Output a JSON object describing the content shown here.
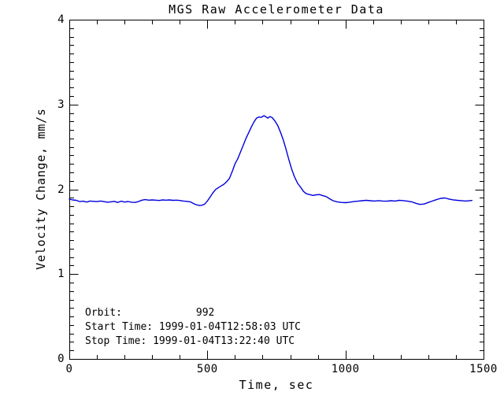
{
  "chart_data": {
    "type": "line",
    "title": "MGS Raw Accelerometer Data",
    "xlabel": "Time, sec",
    "ylabel": "Velocity Change, mm/s",
    "xlim": [
      0,
      1500
    ],
    "ylim": [
      0,
      4
    ],
    "xticks": [
      0,
      500,
      1000,
      1500
    ],
    "xtick_labels": [
      "0",
      "500",
      "1000",
      "1500"
    ],
    "yticks": [
      0,
      1,
      2,
      3,
      4
    ],
    "ytick_labels": [
      "0",
      "1",
      "2",
      "3",
      "4"
    ],
    "x_minor_interval": 100,
    "y_minor_interval": 0.1,
    "grid": false,
    "legend_position": "none",
    "axis_color": "#000000",
    "line_color": "#0000dd",
    "series": [
      {
        "name": "velocity_change_mm_per_s",
        "points": [
          [
            0,
            1.885
          ],
          [
            12,
            1.875
          ],
          [
            25,
            1.87
          ],
          [
            38,
            1.855
          ],
          [
            50,
            1.86
          ],
          [
            63,
            1.85
          ],
          [
            75,
            1.862
          ],
          [
            88,
            1.858
          ],
          [
            100,
            1.855
          ],
          [
            113,
            1.862
          ],
          [
            125,
            1.855
          ],
          [
            138,
            1.848
          ],
          [
            150,
            1.852
          ],
          [
            163,
            1.858
          ],
          [
            175,
            1.845
          ],
          [
            188,
            1.86
          ],
          [
            200,
            1.85
          ],
          [
            213,
            1.856
          ],
          [
            225,
            1.848
          ],
          [
            238,
            1.845
          ],
          [
            250,
            1.855
          ],
          [
            263,
            1.872
          ],
          [
            275,
            1.878
          ],
          [
            288,
            1.872
          ],
          [
            300,
            1.875
          ],
          [
            313,
            1.872
          ],
          [
            325,
            1.868
          ],
          [
            338,
            1.875
          ],
          [
            350,
            1.872
          ],
          [
            363,
            1.875
          ],
          [
            375,
            1.87
          ],
          [
            388,
            1.872
          ],
          [
            400,
            1.868
          ],
          [
            413,
            1.862
          ],
          [
            425,
            1.858
          ],
          [
            438,
            1.852
          ],
          [
            450,
            1.832
          ],
          [
            460,
            1.818
          ],
          [
            470,
            1.81
          ],
          [
            480,
            1.812
          ],
          [
            490,
            1.825
          ],
          [
            500,
            1.862
          ],
          [
            510,
            1.908
          ],
          [
            520,
            1.958
          ],
          [
            530,
            1.998
          ],
          [
            540,
            2.02
          ],
          [
            550,
            2.04
          ],
          [
            560,
            2.06
          ],
          [
            570,
            2.09
          ],
          [
            580,
            2.13
          ],
          [
            590,
            2.21
          ],
          [
            600,
            2.3
          ],
          [
            610,
            2.36
          ],
          [
            620,
            2.44
          ],
          [
            630,
            2.52
          ],
          [
            640,
            2.6
          ],
          [
            650,
            2.67
          ],
          [
            660,
            2.74
          ],
          [
            670,
            2.8
          ],
          [
            678,
            2.84
          ],
          [
            686,
            2.852
          ],
          [
            695,
            2.848
          ],
          [
            705,
            2.868
          ],
          [
            712,
            2.855
          ],
          [
            719,
            2.84
          ],
          [
            727,
            2.858
          ],
          [
            735,
            2.845
          ],
          [
            745,
            2.805
          ],
          [
            755,
            2.75
          ],
          [
            765,
            2.67
          ],
          [
            775,
            2.58
          ],
          [
            785,
            2.47
          ],
          [
            795,
            2.35
          ],
          [
            805,
            2.24
          ],
          [
            815,
            2.15
          ],
          [
            827,
            2.07
          ],
          [
            838,
            2.022
          ],
          [
            848,
            1.975
          ],
          [
            858,
            1.948
          ],
          [
            870,
            1.938
          ],
          [
            882,
            1.928
          ],
          [
            894,
            1.935
          ],
          [
            906,
            1.938
          ],
          [
            918,
            1.925
          ],
          [
            930,
            1.915
          ],
          [
            942,
            1.89
          ],
          [
            955,
            1.865
          ],
          [
            970,
            1.852
          ],
          [
            985,
            1.845
          ],
          [
            1000,
            1.842
          ],
          [
            1015,
            1.848
          ],
          [
            1030,
            1.855
          ],
          [
            1045,
            1.86
          ],
          [
            1060,
            1.865
          ],
          [
            1075,
            1.87
          ],
          [
            1090,
            1.865
          ],
          [
            1105,
            1.862
          ],
          [
            1120,
            1.866
          ],
          [
            1135,
            1.862
          ],
          [
            1150,
            1.86
          ],
          [
            1165,
            1.865
          ],
          [
            1180,
            1.862
          ],
          [
            1195,
            1.87
          ],
          [
            1210,
            1.866
          ],
          [
            1225,
            1.86
          ],
          [
            1240,
            1.852
          ],
          [
            1255,
            1.835
          ],
          [
            1270,
            1.822
          ],
          [
            1285,
            1.826
          ],
          [
            1300,
            1.845
          ],
          [
            1315,
            1.862
          ],
          [
            1330,
            1.878
          ],
          [
            1345,
            1.893
          ],
          [
            1360,
            1.898
          ],
          [
            1375,
            1.885
          ],
          [
            1390,
            1.876
          ],
          [
            1405,
            1.87
          ],
          [
            1420,
            1.866
          ],
          [
            1435,
            1.862
          ],
          [
            1450,
            1.866
          ],
          [
            1458,
            1.868
          ]
        ]
      }
    ],
    "annotations": [
      "Orbit:            992",
      "Start Time: 1999-01-04T12:58:03 UTC",
      "Stop Time: 1999-01-04T13:22:40 UTC"
    ]
  }
}
